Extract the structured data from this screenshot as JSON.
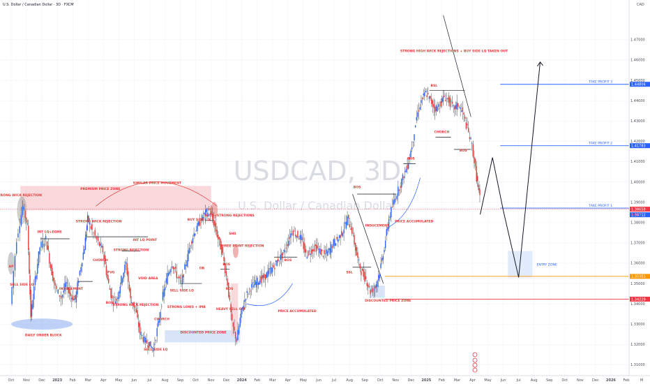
{
  "header": {
    "symbol_line": "U.S. Dollar / Canadian Dollar · 3D · FXCM",
    "currency": "CAD"
  },
  "watermark": {
    "ticker": "USDCAD, 3D",
    "name": "U.S. Dollar / Canadian Dollar"
  },
  "chart_data": {
    "type": "candlestick",
    "title": "U.S. Dollar / Canadian Dollar · 3D · FXCM",
    "y_unit": "CAD",
    "ylim": [
      1.305,
      1.483
    ],
    "y_ticks": [
      {
        "v": 1.47,
        "label": "1.47000"
      },
      {
        "v": 1.46,
        "label": "1.46000"
      },
      {
        "v": 1.45,
        "label": "1.45000"
      },
      {
        "v": 1.44,
        "label": "1.44000"
      },
      {
        "v": 1.43,
        "label": "1.43000"
      },
      {
        "v": 1.42,
        "label": "1.42000"
      },
      {
        "v": 1.41,
        "label": "1.41000"
      },
      {
        "v": 1.4,
        "label": "1.40000"
      },
      {
        "v": 1.39,
        "label": "1.39000"
      },
      {
        "v": 1.38,
        "label": "1.38000"
      },
      {
        "v": 1.37,
        "label": "1.37000"
      },
      {
        "v": 1.36,
        "label": "1.36000"
      },
      {
        "v": 1.35,
        "label": "1.35000"
      },
      {
        "v": 1.34,
        "label": "1.34000"
      },
      {
        "v": 1.33,
        "label": "1.33000"
      },
      {
        "v": 1.32,
        "label": "1.32000"
      },
      {
        "v": 1.31,
        "label": "1.31000"
      }
    ],
    "x_ticks": [
      {
        "t": 0,
        "label": "Oct"
      },
      {
        "t": 1,
        "label": "Nov"
      },
      {
        "t": 2,
        "label": "Dec"
      },
      {
        "t": 3,
        "label": "2023"
      },
      {
        "t": 4,
        "label": "Feb"
      },
      {
        "t": 5,
        "label": "Mar"
      },
      {
        "t": 6,
        "label": "Apr"
      },
      {
        "t": 7,
        "label": "May"
      },
      {
        "t": 8,
        "label": "Jun"
      },
      {
        "t": 9,
        "label": "Jul"
      },
      {
        "t": 10,
        "label": "Aug"
      },
      {
        "t": 11,
        "label": "Sep"
      },
      {
        "t": 12,
        "label": "Oct"
      },
      {
        "t": 13,
        "label": "Nov"
      },
      {
        "t": 14,
        "label": "Dec"
      },
      {
        "t": 15,
        "label": "2024"
      },
      {
        "t": 16,
        "label": "Feb"
      },
      {
        "t": 17,
        "label": "Mar"
      },
      {
        "t": 18,
        "label": "Apr"
      },
      {
        "t": 19,
        "label": "May"
      },
      {
        "t": 20,
        "label": "Jun"
      },
      {
        "t": 21,
        "label": "Jul"
      },
      {
        "t": 22,
        "label": "Aug"
      },
      {
        "t": 23,
        "label": "Sep"
      },
      {
        "t": 24,
        "label": "Oct"
      },
      {
        "t": 25,
        "label": "Nov"
      },
      {
        "t": 26,
        "label": "Dec"
      },
      {
        "t": 27,
        "label": "2025"
      },
      {
        "t": 28,
        "label": "Feb"
      },
      {
        "t": 29,
        "label": "Mar"
      },
      {
        "t": 30,
        "label": "Apr"
      },
      {
        "t": 31,
        "label": "May"
      },
      {
        "t": 32,
        "label": "Jun"
      },
      {
        "t": 33,
        "label": "Jul"
      },
      {
        "t": 34,
        "label": "Aug"
      },
      {
        "t": 35,
        "label": "Sep"
      },
      {
        "t": 36,
        "label": "Oct"
      },
      {
        "t": 37,
        "label": "Nov"
      },
      {
        "t": 38,
        "label": "Dec"
      },
      {
        "t": 39,
        "label": "2026"
      },
      {
        "t": 40,
        "label": "Feb"
      },
      {
        "t": 41,
        "label": "M"
      }
    ],
    "price_path": [
      [
        0.0,
        1.34
      ],
      [
        0.4,
        1.372
      ],
      [
        0.8,
        1.388
      ],
      [
        1.1,
        1.378
      ],
      [
        1.3,
        1.334
      ],
      [
        1.6,
        1.352
      ],
      [
        1.9,
        1.368
      ],
      [
        2.3,
        1.372
      ],
      [
        2.6,
        1.358
      ],
      [
        2.9,
        1.348
      ],
      [
        3.3,
        1.343
      ],
      [
        3.6,
        1.35
      ],
      [
        3.9,
        1.344
      ],
      [
        4.2,
        1.342
      ],
      [
        4.5,
        1.356
      ],
      [
        4.8,
        1.368
      ],
      [
        5.0,
        1.382
      ],
      [
        5.3,
        1.376
      ],
      [
        5.7,
        1.37
      ],
      [
        6.0,
        1.366
      ],
      [
        6.3,
        1.352
      ],
      [
        6.6,
        1.342
      ],
      [
        6.9,
        1.342
      ],
      [
        7.2,
        1.352
      ],
      [
        7.5,
        1.36
      ],
      [
        7.8,
        1.342
      ],
      [
        8.1,
        1.338
      ],
      [
        8.4,
        1.326
      ],
      [
        8.7,
        1.322
      ],
      [
        9.0,
        1.32
      ],
      [
        9.3,
        1.318
      ],
      [
        9.6,
        1.33
      ],
      [
        9.9,
        1.344
      ],
      [
        10.2,
        1.354
      ],
      [
        10.5,
        1.36
      ],
      [
        10.8,
        1.354
      ],
      [
        11.1,
        1.35
      ],
      [
        11.4,
        1.36
      ],
      [
        11.7,
        1.37
      ],
      [
        12.0,
        1.376
      ],
      [
        12.3,
        1.38
      ],
      [
        12.6,
        1.384
      ],
      [
        12.9,
        1.386
      ],
      [
        13.2,
        1.38
      ],
      [
        13.5,
        1.372
      ],
      [
        13.8,
        1.364
      ],
      [
        14.1,
        1.35
      ],
      [
        14.4,
        1.33
      ],
      [
        14.7,
        1.322
      ],
      [
        15.0,
        1.336
      ],
      [
        15.3,
        1.344
      ],
      [
        15.6,
        1.348
      ],
      [
        15.9,
        1.35
      ],
      [
        16.2,
        1.352
      ],
      [
        16.5,
        1.353
      ],
      [
        16.8,
        1.356
      ],
      [
        17.1,
        1.358
      ],
      [
        17.4,
        1.362
      ],
      [
        17.7,
        1.364
      ],
      [
        18.0,
        1.37
      ],
      [
        18.3,
        1.376
      ],
      [
        18.6,
        1.374
      ],
      [
        18.9,
        1.372
      ],
      [
        19.2,
        1.364
      ],
      [
        19.5,
        1.366
      ],
      [
        19.8,
        1.368
      ],
      [
        20.1,
        1.366
      ],
      [
        20.4,
        1.364
      ],
      [
        20.7,
        1.366
      ],
      [
        21.0,
        1.37
      ],
      [
        21.3,
        1.372
      ],
      [
        21.6,
        1.376
      ],
      [
        21.9,
        1.382
      ],
      [
        22.2,
        1.376
      ],
      [
        22.5,
        1.364
      ],
      [
        22.8,
        1.356
      ],
      [
        23.1,
        1.352
      ],
      [
        23.4,
        1.346
      ],
      [
        23.7,
        1.348
      ],
      [
        24.0,
        1.356
      ],
      [
        24.3,
        1.368
      ],
      [
        24.6,
        1.382
      ],
      [
        24.9,
        1.39
      ],
      [
        25.2,
        1.396
      ],
      [
        25.5,
        1.402
      ],
      [
        25.8,
        1.408
      ],
      [
        26.1,
        1.418
      ],
      [
        26.4,
        1.432
      ],
      [
        26.7,
        1.44
      ],
      [
        27.0,
        1.444
      ],
      [
        27.3,
        1.44
      ],
      [
        27.6,
        1.436
      ],
      [
        27.9,
        1.438
      ],
      [
        28.2,
        1.442
      ],
      [
        28.5,
        1.44
      ],
      [
        28.8,
        1.436
      ],
      [
        29.1,
        1.438
      ],
      [
        29.4,
        1.434
      ],
      [
        29.7,
        1.426
      ],
      [
        30.0,
        1.418
      ],
      [
        30.3,
        1.402
      ],
      [
        30.5,
        1.392
      ]
    ],
    "current_price": 1.38658,
    "price_tags": [
      {
        "label": "1.44804",
        "v": 1.44804,
        "color": "#2962ff"
      },
      {
        "label": "1.41783",
        "v": 1.41783,
        "color": "#2962ff"
      },
      {
        "label": "1.38658",
        "v": 1.38658,
        "color": "#f23645"
      },
      {
        "label": "1.38712",
        "v": 1.38712,
        "color": "#2962ff"
      },
      {
        "label": "1.35351",
        "v": 1.35351,
        "color": "#ff9800"
      },
      {
        "label": "1.34229",
        "v": 1.34229,
        "color": "#f23645"
      }
    ],
    "countdown_label": "44:7?",
    "levels": [
      {
        "name": "TAKE PROFIT 3",
        "v": 1.44804,
        "color": "#2962ff"
      },
      {
        "name": "TAKE PROFIT 2",
        "v": 1.41783,
        "color": "#2962ff"
      },
      {
        "name": "TAKE PROFIT 1",
        "v": 1.38712,
        "color": "#2962ff"
      },
      {
        "name": "",
        "v": 1.35351,
        "color": "#ff9800"
      },
      {
        "name": "",
        "v": 1.34229,
        "color": "#f23645"
      }
    ],
    "zones": [
      {
        "label": "PREMIUM PRICE ZONE",
        "t0": 0.6,
        "t1": 13.0,
        "v0": 1.386,
        "v1": 1.398,
        "color": "#f8c9cd"
      },
      {
        "label": "DISCOUNTED PRICE ZONE",
        "t0": 10.0,
        "t1": 14.9,
        "v0": 1.321,
        "v1": 1.327,
        "color": "#c9d9f6"
      },
      {
        "label": "DISCOUNTED PRICE ZONE",
        "t0": 23.3,
        "t1": 24.3,
        "v0": 1.343,
        "v1": 1.349,
        "color": "#c9d9f6"
      },
      {
        "label": "ENTRY ZONE",
        "t0": 32.3,
        "t1": 33.9,
        "v0": 1.353,
        "v1": 1.366,
        "color": "#d6e3fa"
      }
    ],
    "annotations": [
      {
        "text": "STRONG WICK REJECTION",
        "t": 0.5,
        "v": 1.393,
        "color": "#e53935"
      },
      {
        "text": "PREMIUM PRICE ZONE",
        "t": 5.8,
        "v": 1.396,
        "color": "#e53935"
      },
      {
        "text": "SIMILAR PRICE MOVEMENT",
        "t": 9.5,
        "v": 1.399,
        "color": "#e53935"
      },
      {
        "text": "WICK+STRONG REJECTIONS",
        "t": 14.2,
        "v": 1.383,
        "color": "#e53935"
      },
      {
        "text": "STRONG WICK REJECTION",
        "t": 5.7,
        "v": 1.38,
        "color": "#e53935"
      },
      {
        "text": "INT LQ+EQHS",
        "t": 2.5,
        "v": 1.375,
        "color": "#e53935"
      },
      {
        "text": "INT LQ POINT",
        "t": 8.7,
        "v": 1.371,
        "color": "#e53935"
      },
      {
        "text": "BUY SIDE LQ",
        "t": 12.2,
        "v": 1.381,
        "color": "#e53935"
      },
      {
        "text": "SHS",
        "t": 14.4,
        "v": 1.374,
        "color": "#e53935"
      },
      {
        "text": "THREE POINT REJECTION",
        "t": 15.0,
        "v": 1.368,
        "color": "#e53935"
      },
      {
        "text": "STRONG REJECTION",
        "t": 7.8,
        "v": 1.366,
        "color": "#e53935"
      },
      {
        "text": "BOS",
        "t": 18.0,
        "v": 1.361,
        "color": "#e53935"
      },
      {
        "text": "BOS",
        "t": 14.0,
        "v": 1.359,
        "color": "#e53935"
      },
      {
        "text": "CHORCH",
        "t": 5.8,
        "v": 1.361,
        "color": "#e53935"
      },
      {
        "text": "FVG",
        "t": 6.5,
        "v": 1.355,
        "color": "#e53935"
      },
      {
        "text": "VOID AREA",
        "t": 8.9,
        "v": 1.352,
        "color": "#e53935"
      },
      {
        "text": "INDUCEMENT",
        "t": 3.9,
        "v": 1.347,
        "color": "#e53935"
      },
      {
        "text": "SELL SIDE LQ",
        "t": 0.7,
        "v": 1.349,
        "color": "#e53935"
      },
      {
        "text": "SELL SIDE LQ",
        "t": 11.1,
        "v": 1.346,
        "color": "#e53935"
      },
      {
        "text": "OB",
        "t": 12.4,
        "v": 1.357,
        "color": "#e53935"
      },
      {
        "text": "BOS",
        "t": 14.2,
        "v": 1.347,
        "color": "#e53935"
      },
      {
        "text": "BOS",
        "t": 6.4,
        "v": 1.34,
        "color": "#e53935"
      },
      {
        "text": "STRONG LOWS + IMB",
        "t": 11.4,
        "v": 1.338,
        "color": "#e53935"
      },
      {
        "text": "HEAVY SELL OFF",
        "t": 14.3,
        "v": 1.337,
        "color": "#e53935"
      },
      {
        "text": "PRICE ACCUMULATED",
        "t": 18.6,
        "v": 1.336,
        "color": "#e53935"
      },
      {
        "text": "STRONG WICK REJECTION",
        "t": 8.1,
        "v": 1.339,
        "color": "#e53935"
      },
      {
        "text": "CHORCH",
        "t": 9.8,
        "v": 1.332,
        "color": "#e53935"
      },
      {
        "text": "DAILY ORDER BLOCK",
        "t": 2.1,
        "v": 1.324,
        "color": "#e53935"
      },
      {
        "text": "DISCOUNTED PRICE ZONE",
        "t": 12.5,
        "v": 1.3255,
        "color": "#e53935"
      },
      {
        "text": "SELL SIDE LQ",
        "t": 9.4,
        "v": 1.317,
        "color": "#e53935"
      },
      {
        "text": "BOS",
        "t": 22.5,
        "v": 1.397,
        "color": "#e53935"
      },
      {
        "text": "INDUCEMENT",
        "t": 23.8,
        "v": 1.378,
        "color": "#e53935"
      },
      {
        "text": "PRICE ACCUMULATED",
        "t": 26.2,
        "v": 1.38,
        "color": "#e53935"
      },
      {
        "text": "SSL",
        "t": 22.0,
        "v": 1.355,
        "color": "#e53935"
      },
      {
        "text": "DISCOUNTED PRICE ZONE",
        "t": 24.5,
        "v": 1.341,
        "color": "#e53935"
      },
      {
        "text": "BOS",
        "t": 26.0,
        "v": 1.411,
        "color": "#e53935"
      },
      {
        "text": "STRONG HIGH WICK REJECTIONS + BUY SIDE LQ TAKEN OUT",
        "t": 28.8,
        "v": 1.464,
        "color": "#e53935"
      },
      {
        "text": "BSL",
        "t": 27.5,
        "v": 1.447,
        "color": "#e53935"
      },
      {
        "text": "CHORCH",
        "t": 28.0,
        "v": 1.424,
        "color": "#e53935"
      },
      {
        "text": "BOS",
        "t": 29.4,
        "v": 1.415,
        "color": "#e53935"
      },
      {
        "text": "AP",
        "t": 0.0,
        "v": 1.358,
        "color": "#e53935"
      }
    ]
  }
}
